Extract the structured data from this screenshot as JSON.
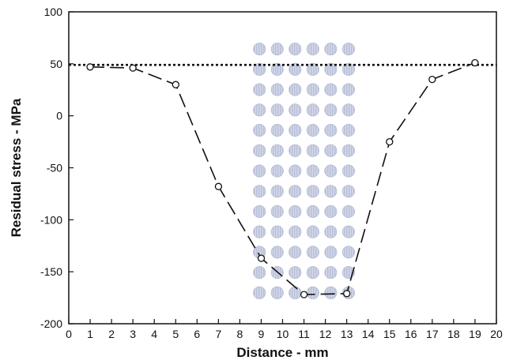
{
  "chart_data": {
    "type": "line",
    "title": "",
    "xlabel": "Distance - mm",
    "ylabel": "Residual stress - MPa",
    "xlim": [
      0,
      20
    ],
    "ylim": [
      -200,
      100
    ],
    "x_ticks": [
      "0",
      "1",
      "2",
      "3",
      "4",
      "5",
      "6",
      "7",
      "8",
      "9",
      "10",
      "11",
      "12",
      "13",
      "14",
      "15",
      "16",
      "17",
      "18",
      "19",
      "20"
    ],
    "y_ticks": [
      "100",
      "50",
      "0",
      "-50",
      "-100",
      "-150",
      "-200"
    ],
    "grid": false,
    "legend": "none",
    "series": [
      {
        "style": "long-dash line with open circle markers",
        "color": "#111111",
        "x": [
          1,
          3,
          5,
          7,
          9,
          11,
          13,
          15,
          17,
          19
        ],
        "y": [
          47,
          46,
          30,
          -68,
          -137,
          -172,
          -171,
          -25,
          35,
          51
        ]
      }
    ],
    "reference_line": {
      "style": "short-dash horizontal line",
      "y": 49,
      "color": "#111111"
    },
    "dot_pattern_region": {
      "description": "grid of shaded circles",
      "x_range": [
        8.5,
        13.5
      ],
      "y_range": [
        -180,
        74
      ],
      "columns": 6,
      "rows": 13,
      "color": "#b9c0d8"
    }
  }
}
